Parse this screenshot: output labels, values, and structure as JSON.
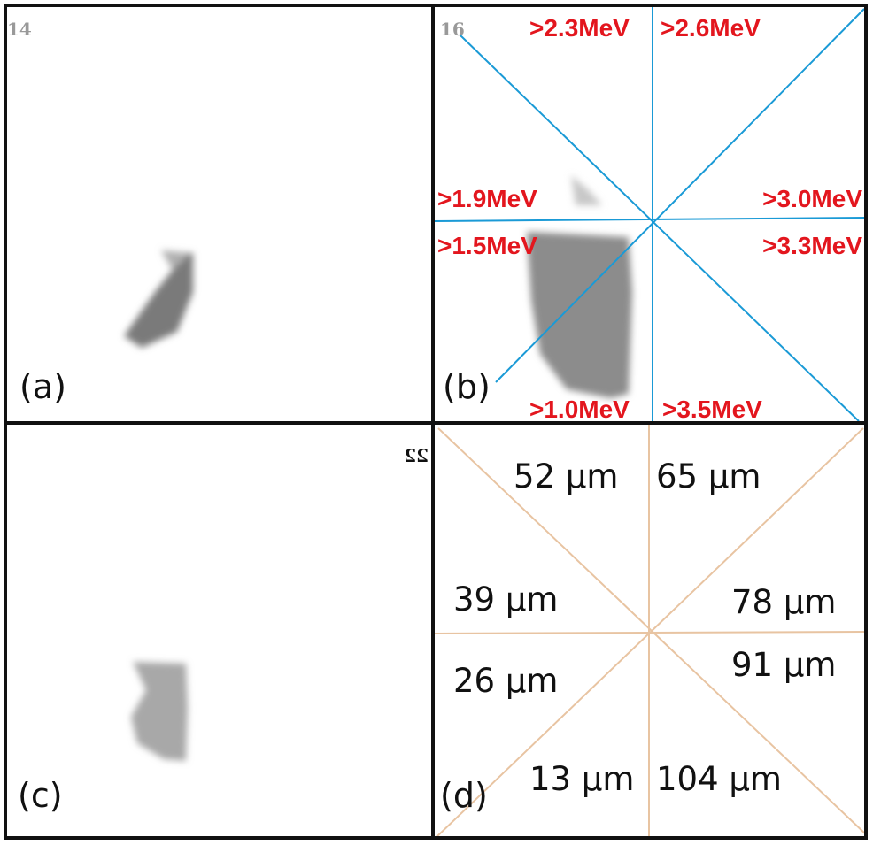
{
  "colors": {
    "energy_label": "#e3161e",
    "blue_lines": "#1a9ad6",
    "orange_lines": "#e8c4a2",
    "frame": "#111111"
  },
  "panels": {
    "a": {
      "label": "(a)",
      "frame_number": "14"
    },
    "b": {
      "label": "(b)",
      "frame_number": "16",
      "energies": [
        ">2.3MeV",
        ">2.6MeV",
        ">1.9MeV",
        ">3.0MeV",
        ">1.5MeV",
        ">3.3MeV",
        ">1.0MeV",
        ">3.5MeV"
      ]
    },
    "c": {
      "label": "(c)",
      "frame_number": "22"
    },
    "d": {
      "label": "(d)",
      "thicknesses": [
        "52 µm",
        "65 µm",
        "39 µm",
        "78 µm",
        "26 µm",
        "91 µm",
        "13 µm",
        "104 µm"
      ]
    }
  }
}
